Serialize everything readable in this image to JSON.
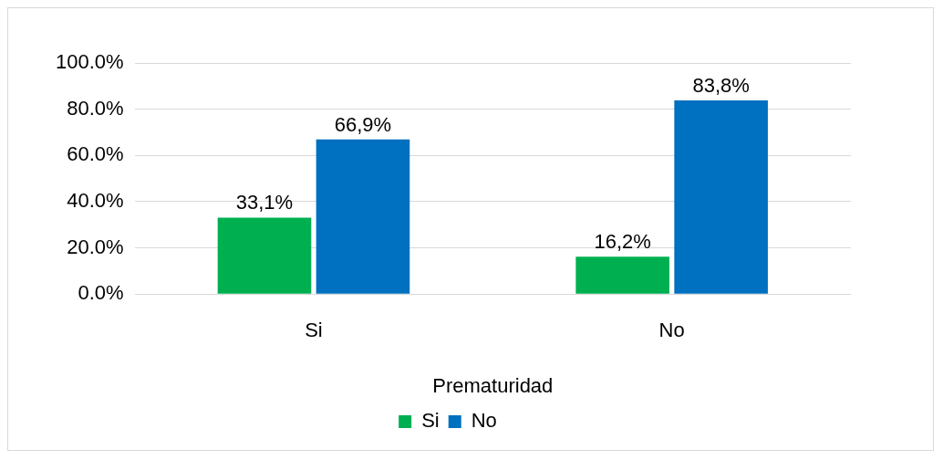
{
  "chart_data": {
    "type": "bar",
    "xlabel": "Prematuridad",
    "categories": [
      "Si",
      "No"
    ],
    "series": [
      {
        "name": "Si",
        "color": "#00b050",
        "values": [
          33.1,
          16.2
        ],
        "value_labels": [
          "33,1%",
          "16,2%"
        ]
      },
      {
        "name": "No",
        "color": "#0070c0",
        "values": [
          66.9,
          83.8
        ],
        "value_labels": [
          "66,9%",
          "83,8%"
        ]
      }
    ],
    "ylim": [
      0,
      100
    ],
    "yticks": [
      {
        "value": 0,
        "label": "0.0%"
      },
      {
        "value": 20,
        "label": "20.0%"
      },
      {
        "value": 40,
        "label": "40.0%"
      },
      {
        "value": 60,
        "label": "60.0%"
      },
      {
        "value": 80,
        "label": "80.0%"
      },
      {
        "value": 100,
        "label": "100.0%"
      }
    ],
    "grid": "y",
    "legend": "bottom"
  }
}
